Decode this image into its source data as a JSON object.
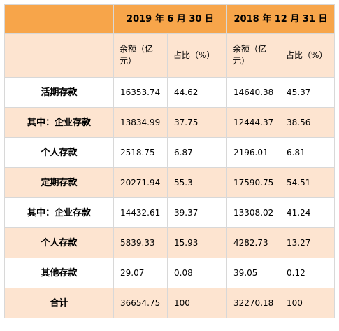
{
  "table": {
    "periods": [
      "2019 年 6 月 30 日",
      "2018 年 12 月 31 日"
    ],
    "subheaders": [
      "余额（亿\n元）",
      "占比（%）",
      "余额（亿\n元）",
      "占比（%）"
    ],
    "rows": [
      {
        "label": "活期存款",
        "values": [
          "16353.74",
          "44.62",
          "14640.38",
          "45.37"
        ]
      },
      {
        "label": "其中：企业存款",
        "values": [
          "13834.99",
          "37.75",
          "12444.37",
          "38.56"
        ]
      },
      {
        "label": "个人存款",
        "values": [
          "2518.75",
          "6.87",
          "2196.01",
          "6.81"
        ]
      },
      {
        "label": "定期存款",
        "values": [
          "20271.94",
          "55.3",
          "17590.75",
          "54.51"
        ]
      },
      {
        "label": "其中：企业存款",
        "values": [
          "14432.61",
          "39.37",
          "13308.02",
          "41.24"
        ]
      },
      {
        "label": "个人存款",
        "values": [
          "5839.33",
          "15.93",
          "4282.73",
          "13.27"
        ]
      },
      {
        "label": "其他存款",
        "values": [
          "29.07",
          "0.08",
          "39.05",
          "0.12"
        ]
      },
      {
        "label": "合计",
        "values": [
          "36654.75",
          "100",
          "32270.18",
          "100"
        ]
      }
    ]
  },
  "colors": {
    "header_bg": "#f7a54a",
    "shade_bg": "#fde4d0",
    "border": "#d8d8d8"
  }
}
